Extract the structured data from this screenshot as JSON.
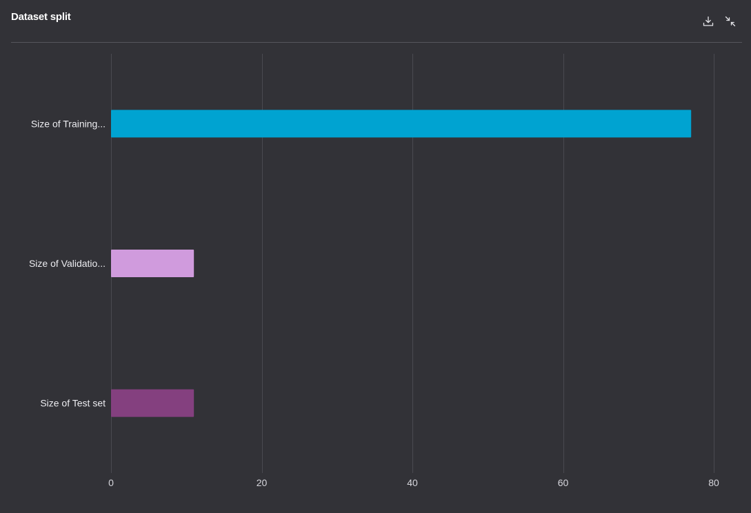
{
  "panel": {
    "title": "Dataset split",
    "actions": [
      {
        "name": "download-icon",
        "icon": "download-icon"
      },
      {
        "name": "collapse-icon",
        "icon": "collapse-icon"
      }
    ]
  },
  "chart_data": {
    "type": "bar",
    "orientation": "horizontal",
    "categories": [
      "Size of Training...",
      "Size of Validatio...",
      "Size of Test set"
    ],
    "values": [
      77,
      11,
      11
    ],
    "colors": [
      "#00a3d1",
      "#d09bdd",
      "#84407f"
    ],
    "xlim": [
      0,
      80
    ],
    "xticks": [
      0,
      20,
      40,
      60,
      80
    ],
    "grid": true,
    "title": "",
    "xlabel": "",
    "ylabel": ""
  }
}
